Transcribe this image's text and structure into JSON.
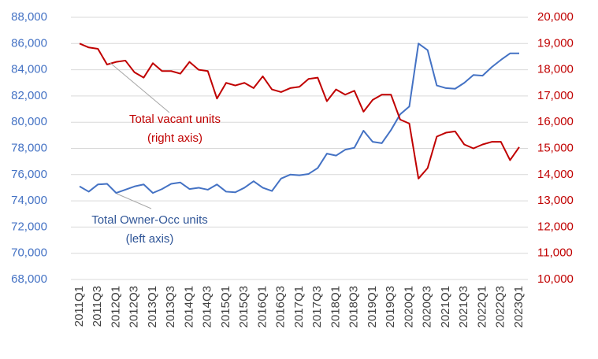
{
  "chart_data": {
    "type": "line",
    "categories": [
      "2011Q1",
      null,
      "2011Q3",
      null,
      "2012Q1",
      null,
      "2012Q3",
      null,
      "2013Q1",
      null,
      "2013Q3",
      null,
      "2014Q1",
      null,
      "2014Q3",
      null,
      "2015Q1",
      null,
      "2015Q3",
      null,
      "2016Q1",
      null,
      "2016Q3",
      null,
      "2017Q1",
      null,
      "2017Q3",
      null,
      "2018Q1",
      null,
      "2018Q3",
      null,
      "2019Q1",
      null,
      "2019Q3",
      null,
      "2020Q1",
      null,
      "2020Q3",
      null,
      "2021Q1",
      null,
      "2021Q3",
      null,
      "2022Q1",
      null,
      "2022Q3",
      null,
      "2023Q1"
    ],
    "series": [
      {
        "name": "Total Owner-Occ units",
        "color": "#4472c4",
        "axis": "y",
        "values": [
          75100,
          74700,
          75250,
          75300,
          74600,
          74850,
          75100,
          75250,
          74600,
          74900,
          75300,
          75400,
          74900,
          75000,
          74850,
          75250,
          74700,
          74650,
          75000,
          75500,
          75000,
          74750,
          75700,
          76000,
          75950,
          76050,
          76500,
          77600,
          77450,
          77900,
          78050,
          79350,
          78500,
          78400,
          79400,
          80600,
          81200,
          86000,
          85500,
          82800,
          82600,
          82550,
          83000,
          83600,
          83550,
          84200,
          84750,
          85250,
          85250
        ]
      },
      {
        "name": "Total vacant units",
        "color": "#c00000",
        "axis": "y2",
        "values": [
          19000,
          18850,
          18800,
          18200,
          18300,
          18350,
          17900,
          17700,
          18250,
          17950,
          17950,
          17850,
          18300,
          18000,
          17950,
          16900,
          17500,
          17400,
          17500,
          17300,
          17750,
          17250,
          17150,
          17300,
          17350,
          17650,
          17700,
          16800,
          17250,
          17050,
          17200,
          16400,
          16850,
          17050,
          17050,
          16100,
          15950,
          13850,
          14250,
          15450,
          15600,
          15650,
          15150,
          15000,
          15150,
          15250,
          15250,
          14550,
          15050
        ]
      }
    ],
    "annotations": [
      {
        "lines": [
          "Total vacant units",
          "(right axis)"
        ],
        "color": "#c00000"
      },
      {
        "lines": [
          "Total Owner-Occ units",
          "(left axis)"
        ],
        "color": "#2f5597"
      }
    ],
    "ylim": [
      68000,
      88000
    ],
    "yticks": [
      {
        "value": 68000,
        "label": "68,000"
      },
      {
        "value": 70000,
        "label": "70,000"
      },
      {
        "value": 72000,
        "label": "72,000"
      },
      {
        "value": 74000,
        "label": "74,000"
      },
      {
        "value": 76000,
        "label": "76,000"
      },
      {
        "value": 78000,
        "label": "78,000"
      },
      {
        "value": 80000,
        "label": "80,000"
      },
      {
        "value": 82000,
        "label": "82,000"
      },
      {
        "value": 84000,
        "label": "84,000"
      },
      {
        "value": 86000,
        "label": "86,000"
      },
      {
        "value": 88000,
        "label": "88,000"
      }
    ],
    "y2lim": [
      10000,
      20000
    ],
    "y2ticks": [
      {
        "value": 10000,
        "label": "10,000"
      },
      {
        "value": 11000,
        "label": "11,000"
      },
      {
        "value": 12000,
        "label": "12,000"
      },
      {
        "value": 13000,
        "label": "13,000"
      },
      {
        "value": 14000,
        "label": "14,000"
      },
      {
        "value": 15000,
        "label": "15,000"
      },
      {
        "value": 16000,
        "label": "16,000"
      },
      {
        "value": 17000,
        "label": "17,000"
      },
      {
        "value": 18000,
        "label": "18,000"
      },
      {
        "value": 19000,
        "label": "19,000"
      },
      {
        "value": 20000,
        "label": "20,000"
      }
    ],
    "grid": true
  }
}
